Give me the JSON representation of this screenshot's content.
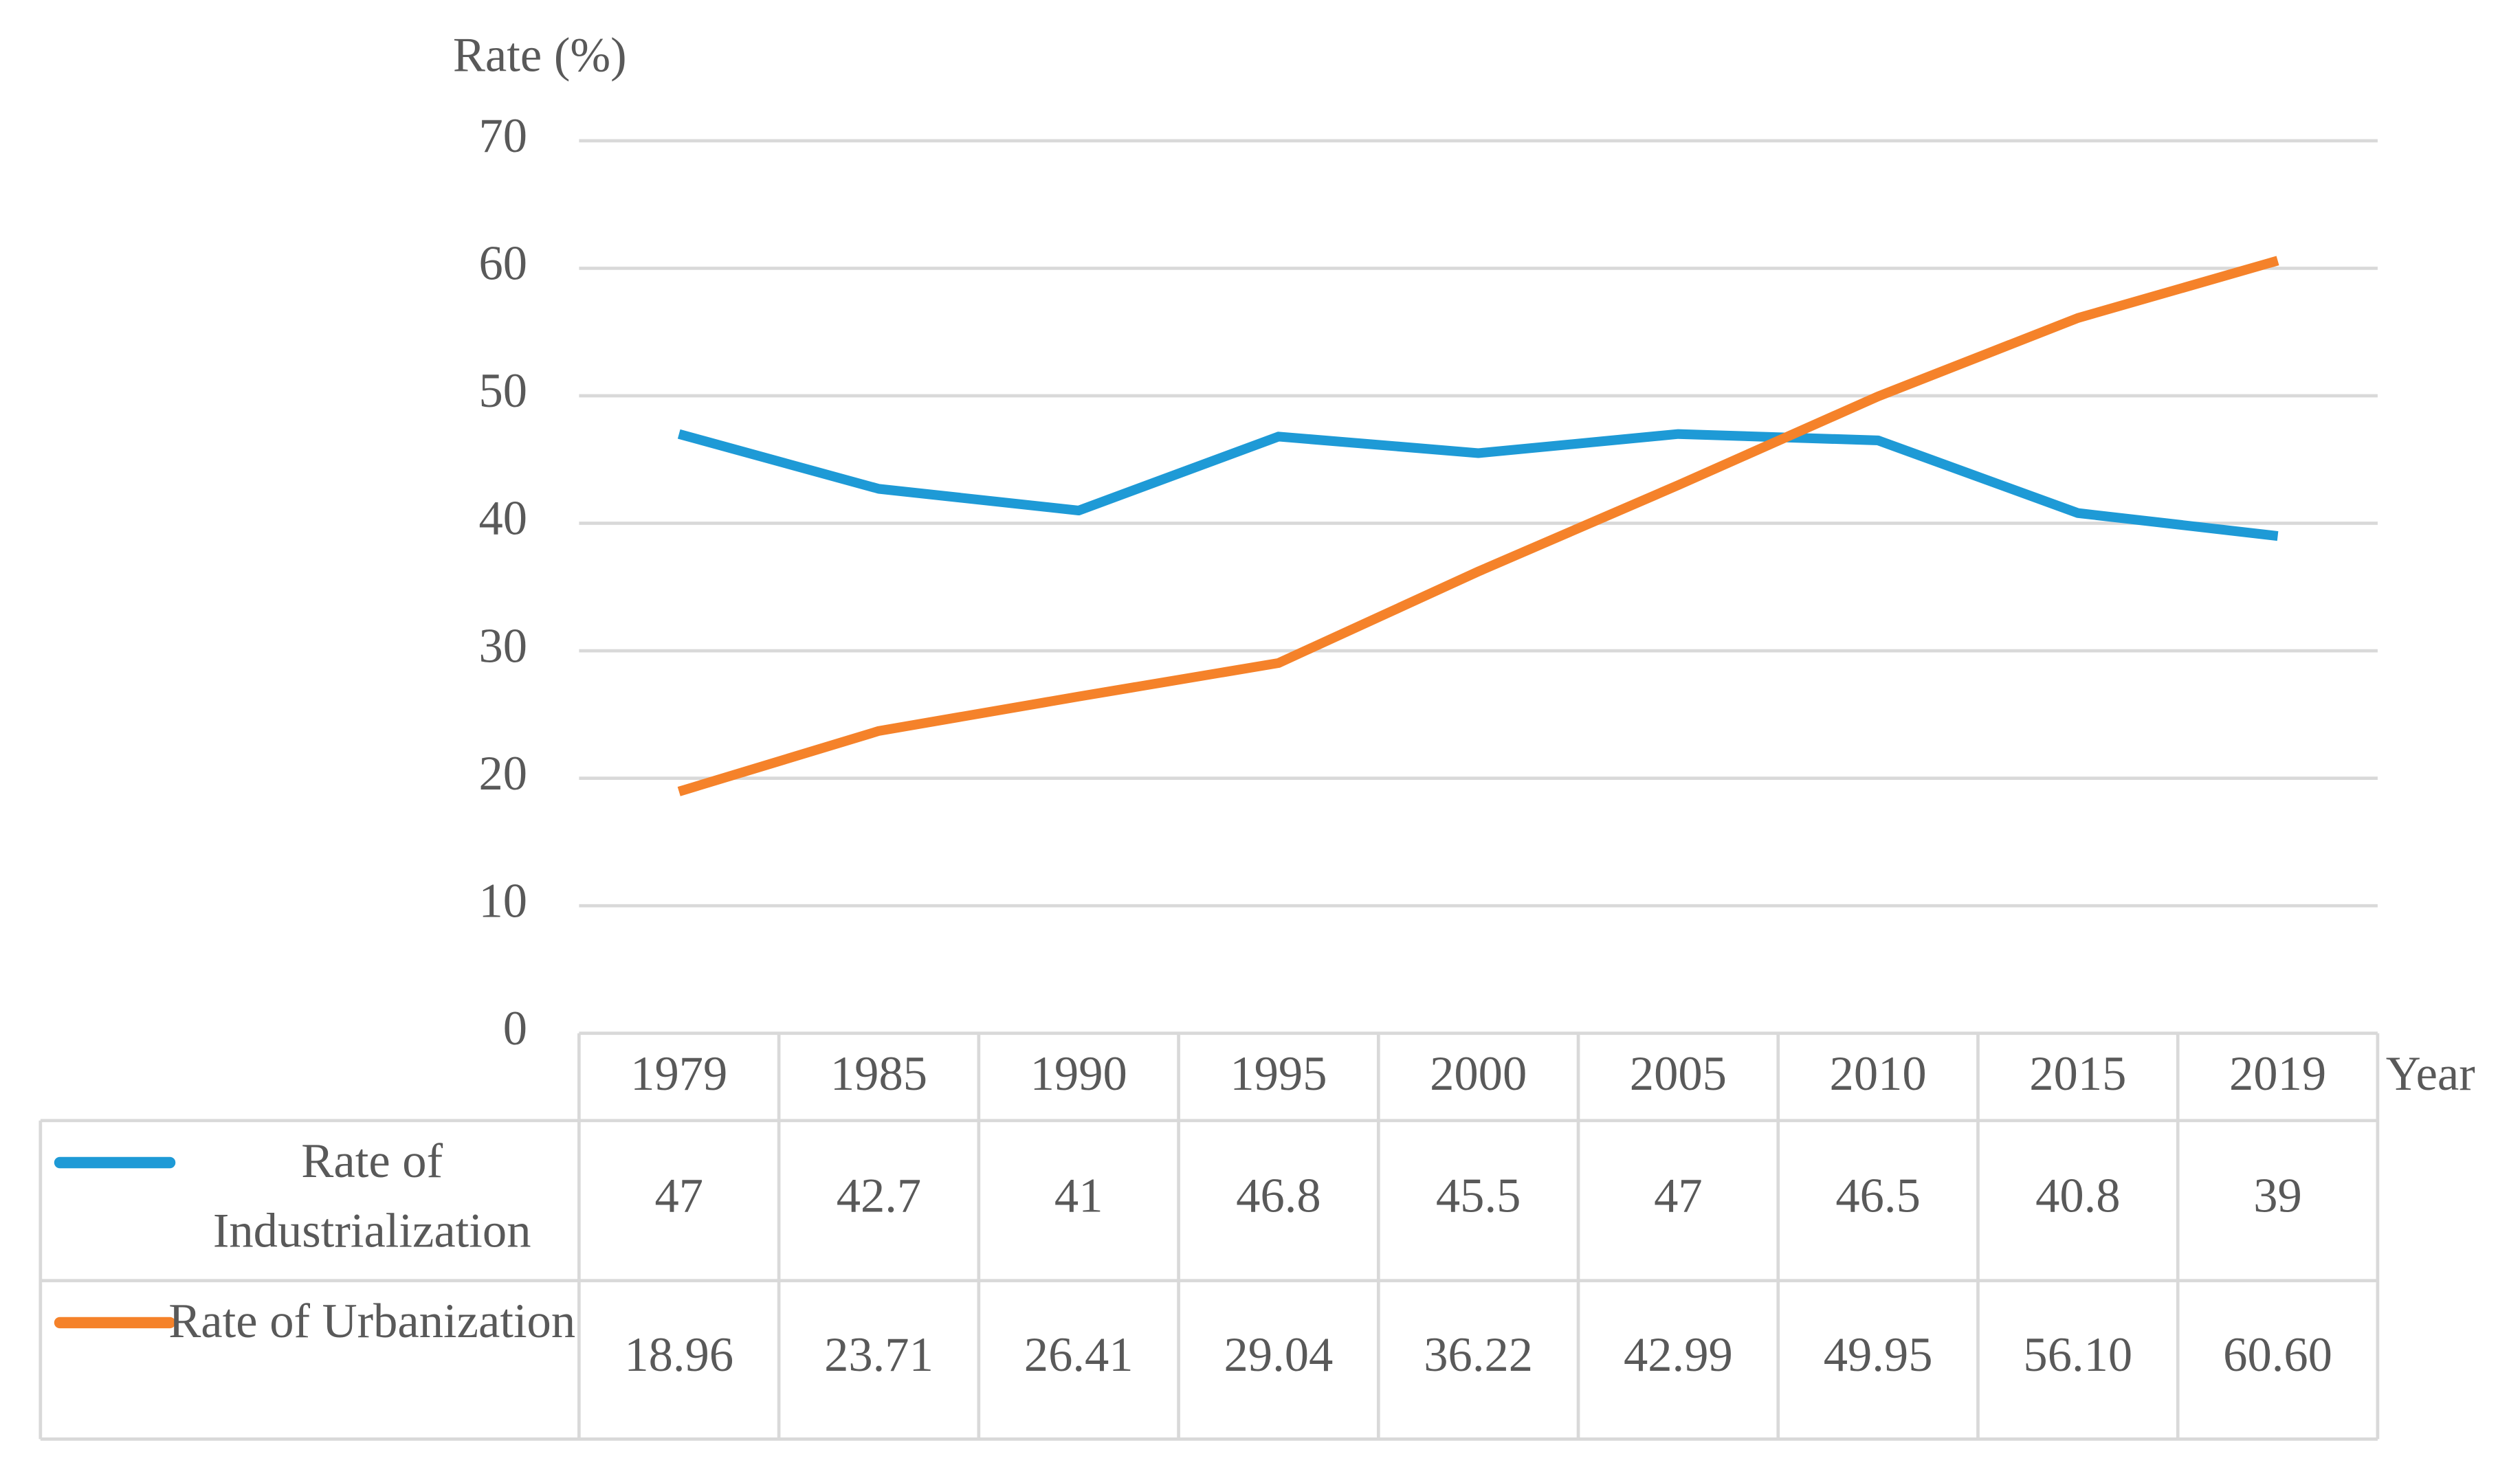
{
  "chart_data": {
    "type": "line",
    "y_label": "Rate (%)",
    "x_label": "Year",
    "categories": [
      "1979",
      "1985",
      "1990",
      "1995",
      "2000",
      "2005",
      "2010",
      "2015",
      "2019"
    ],
    "series": [
      {
        "name": "Rate of Industrialization",
        "color": "#1e9ad6",
        "values": [
          47,
          42.7,
          41,
          46.8,
          45.5,
          47,
          46.5,
          40.8,
          39
        ]
      },
      {
        "name": "Rate of Urbanization",
        "color": "#f5822a",
        "values": [
          18.96,
          23.71,
          26.41,
          29.04,
          36.22,
          42.99,
          49.95,
          56.1,
          60.6
        ],
        "value_labels": [
          "18.96",
          "23.71",
          "26.41",
          "29.04",
          "36.22",
          "42.99",
          "49.95",
          "56.10",
          "60.60"
        ]
      }
    ],
    "ylim": [
      0,
      70
    ],
    "yticks": [
      0,
      10,
      20,
      30,
      40,
      50,
      60,
      70
    ],
    "grid": true
  }
}
